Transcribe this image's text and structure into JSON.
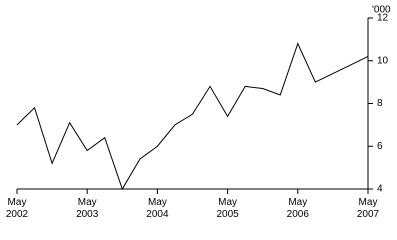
{
  "chart_data": {
    "type": "line",
    "y_unit": "'000",
    "categories": [
      "May 2002",
      null,
      null,
      null,
      "May 2003",
      null,
      null,
      null,
      "May 2004",
      null,
      null,
      null,
      "May 2005",
      null,
      null,
      null,
      "May 2006",
      null,
      null,
      null,
      "May 2007"
    ],
    "values": [
      7.0,
      7.8,
      5.2,
      7.1,
      5.8,
      6.4,
      4.0,
      5.4,
      6.0,
      7.0,
      7.5,
      8.8,
      7.4,
      8.8,
      8.7,
      8.4,
      10.8,
      9.0,
      9.4,
      9.8,
      10.2
    ],
    "color": "#000000",
    "ylim": [
      4,
      12
    ],
    "yticks": [
      4,
      6,
      8,
      10,
      12
    ]
  }
}
